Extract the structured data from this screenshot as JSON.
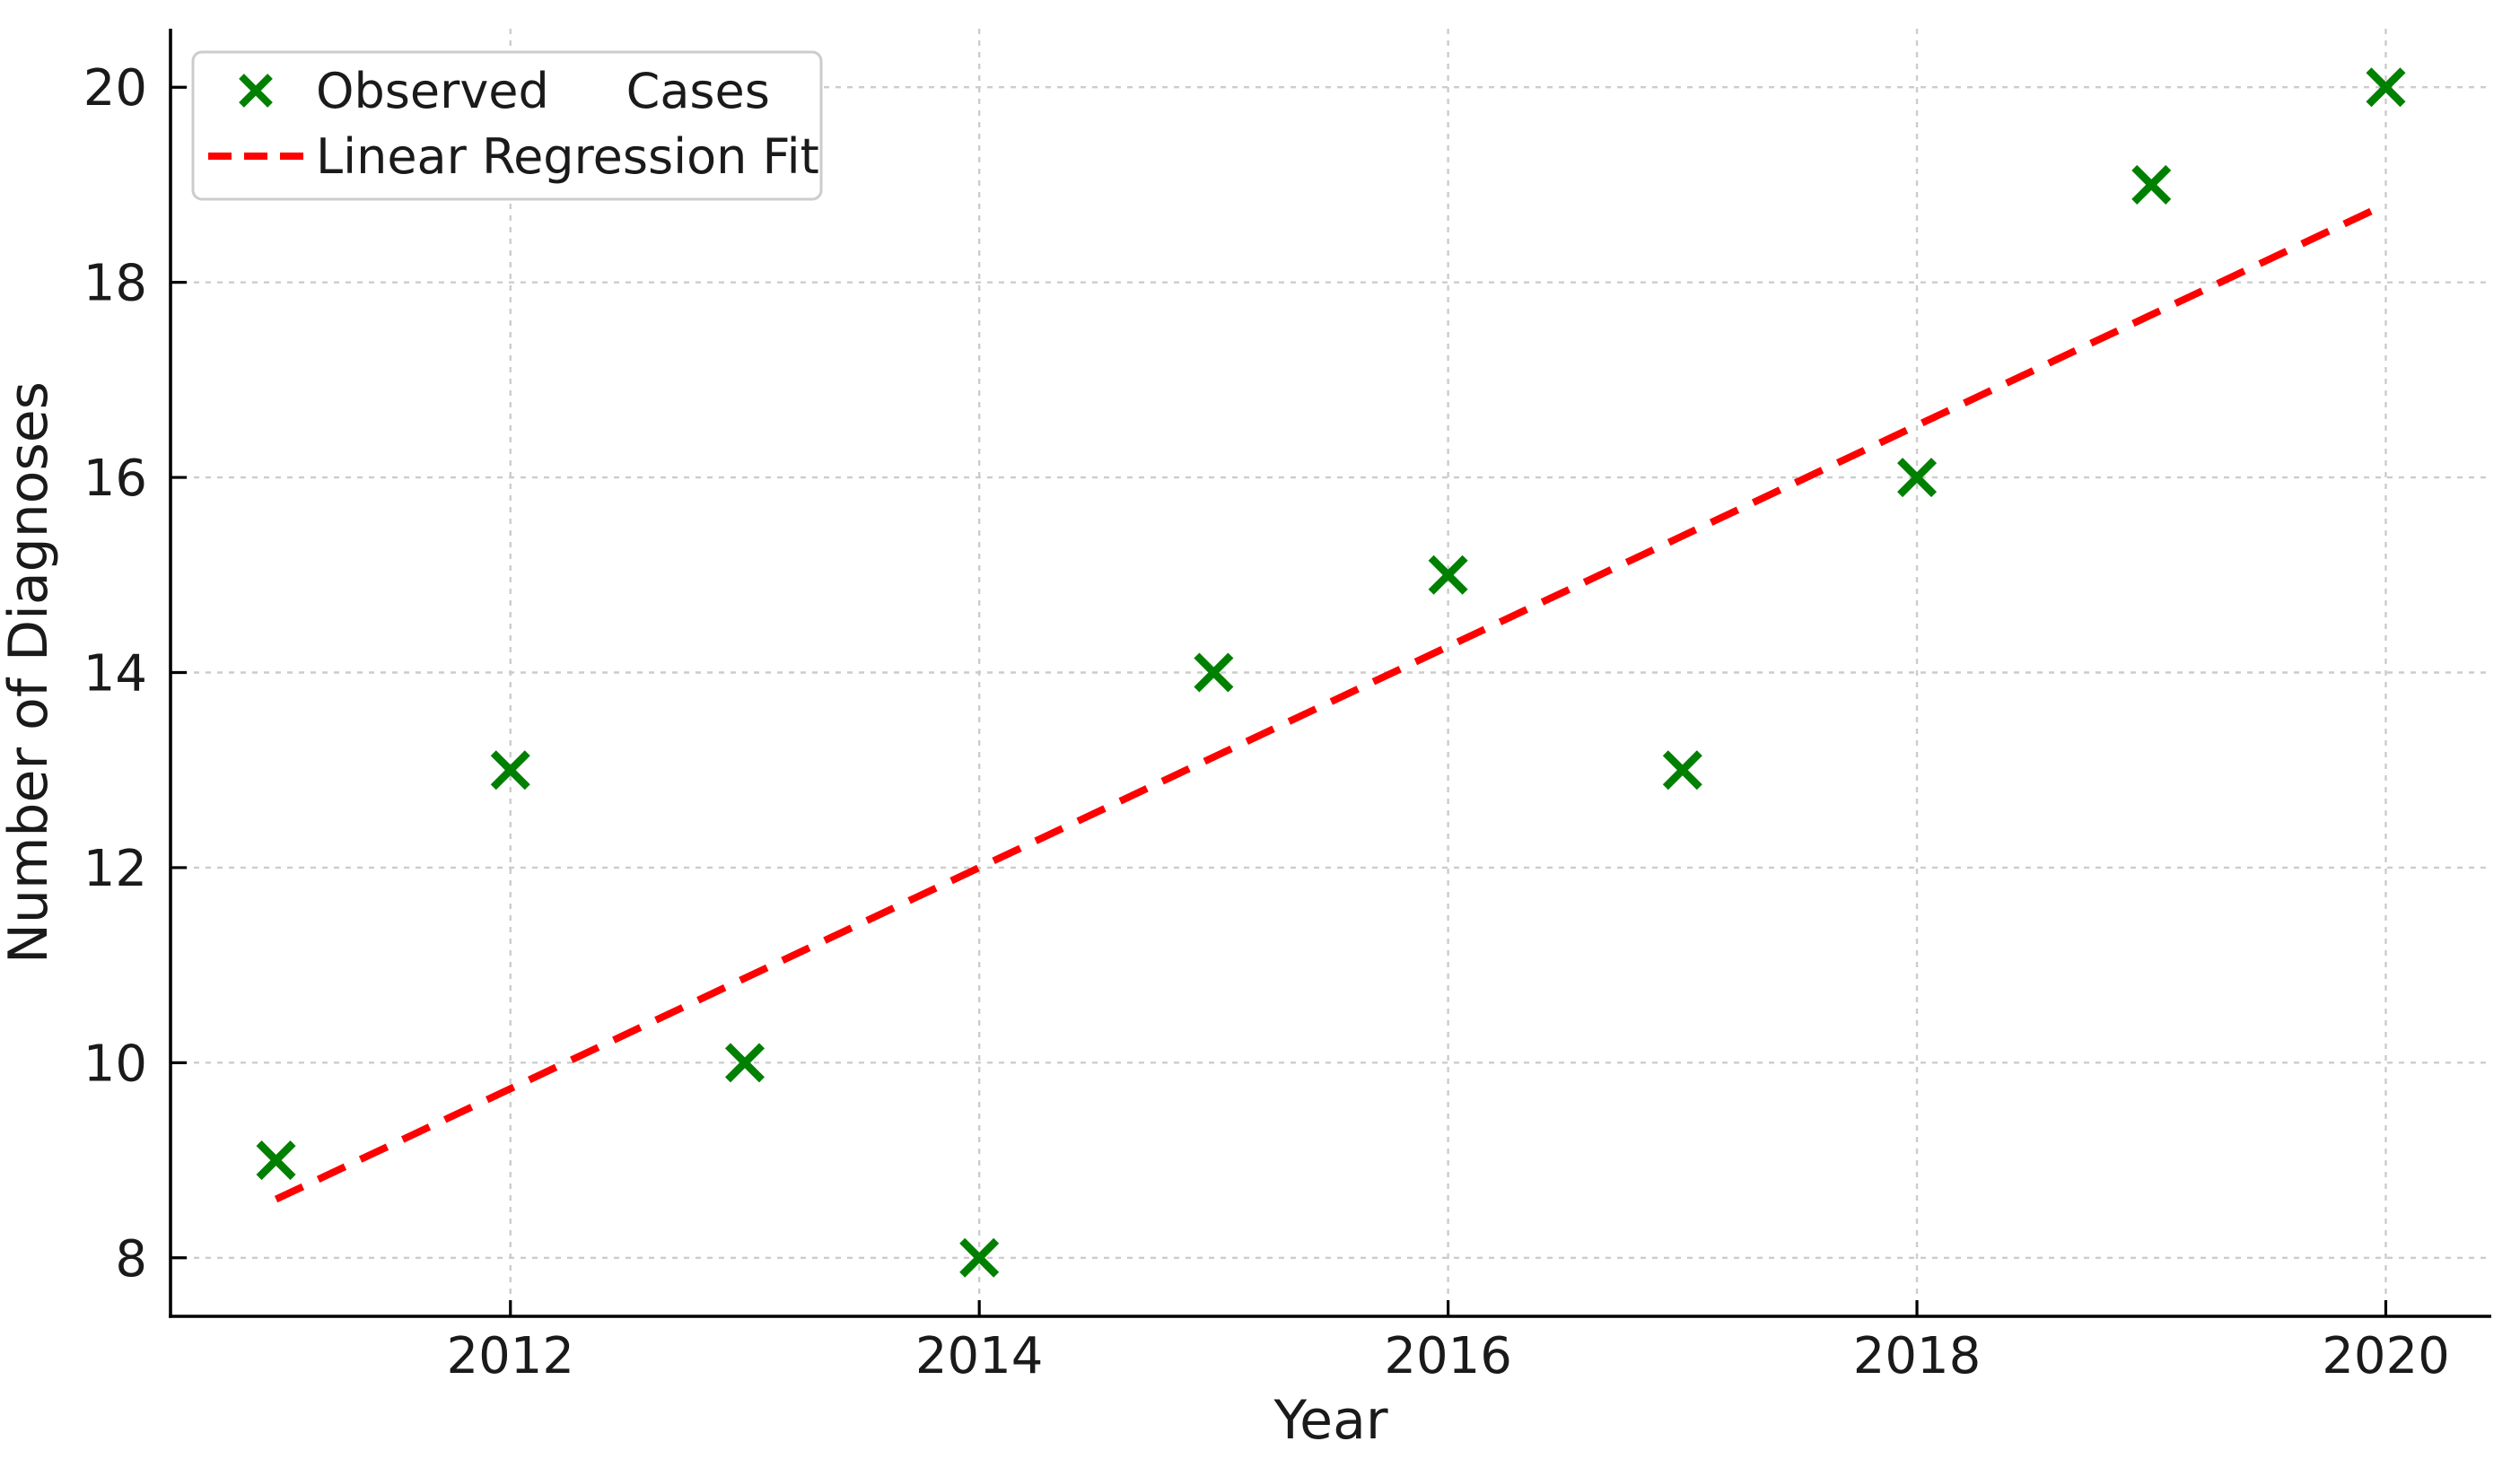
{
  "chart_data": {
    "type": "scatter",
    "title": "",
    "xlabel": "Year",
    "ylabel": "Number of Diagnoses",
    "x": [
      2011,
      2012,
      2013,
      2014,
      2015,
      2016,
      2017,
      2018,
      2019,
      2020
    ],
    "series": [
      {
        "name": "Observed     Cases",
        "kind": "scatter",
        "marker": "x",
        "color": "#008000",
        "values": [
          9,
          13,
          10,
          8,
          14,
          15,
          13,
          16,
          19,
          20
        ]
      },
      {
        "name": "Linear Regression Fit",
        "kind": "line",
        "linestyle": "dashed",
        "color": "#ff0000",
        "x": [
          2011,
          2020
        ],
        "y": [
          8.6,
          18.8
        ]
      }
    ],
    "xticks": [
      2012,
      2014,
      2016,
      2018,
      2020
    ],
    "xtick_labels": [
      "2012",
      "2014",
      "2016",
      "2018",
      "2020"
    ],
    "yticks": [
      8,
      10,
      12,
      14,
      16,
      18,
      20
    ],
    "ytick_labels": [
      "8",
      "10",
      "12",
      "14",
      "16",
      "18",
      "20"
    ],
    "xlim": [
      2010.55,
      2020.45
    ],
    "ylim": [
      7.4,
      20.6
    ],
    "grid": {
      "show": true,
      "style": "dashed"
    },
    "legend": {
      "position": "upper left"
    },
    "colors": {
      "background": "#ffffff",
      "grid": "#cccccc",
      "spine": "#000000",
      "tick": "#000000",
      "text": "#1a1a1a",
      "legend_border": "#cccccc",
      "legend_background": "#ffffff",
      "observed_marker": "#008000",
      "regression_line": "#ff0000"
    }
  }
}
